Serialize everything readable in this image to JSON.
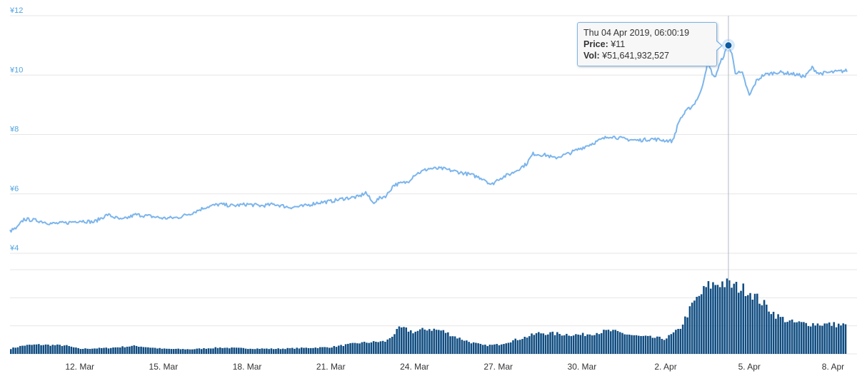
{
  "chart_data": {
    "type": "line",
    "price_axis": {
      "ticks": [
        "¥4",
        "¥6",
        "¥8",
        "¥10",
        "¥12"
      ],
      "ylim": [
        4,
        12
      ]
    },
    "x_ticks": [
      "12. Mar",
      "15. Mar",
      "18. Mar",
      "21. Mar",
      "24. Mar",
      "27. Mar",
      "30. Mar",
      "2. Apr",
      "5. Apr",
      "8. Apr"
    ],
    "x_range": [
      "2019-03-09T12:00",
      "2019-04-08T12:00"
    ],
    "series": [
      {
        "kind": "price_line",
        "color": "#7cb5ec",
        "points": [
          [
            "2019-03-09T12:00",
            4.75
          ],
          [
            "2019-03-09T18:00",
            4.85
          ],
          [
            "2019-03-10T00:00",
            5.15
          ],
          [
            "2019-03-10T12:00",
            5.1
          ],
          [
            "2019-03-11T00:00",
            5.0
          ],
          [
            "2019-03-11T12:00",
            5.02
          ],
          [
            "2019-03-12T00:00",
            5.1
          ],
          [
            "2019-03-12T12:00",
            5.05
          ],
          [
            "2019-03-13T00:00",
            5.3
          ],
          [
            "2019-03-13T12:00",
            5.12
          ],
          [
            "2019-03-14T00:00",
            5.3
          ],
          [
            "2019-03-14T12:00",
            5.25
          ],
          [
            "2019-03-15T00:00",
            5.18
          ],
          [
            "2019-03-15T12:00",
            5.2
          ],
          [
            "2019-03-16T00:00",
            5.35
          ],
          [
            "2019-03-16T12:00",
            5.55
          ],
          [
            "2019-03-17T00:00",
            5.65
          ],
          [
            "2019-03-17T12:00",
            5.6
          ],
          [
            "2019-03-18T00:00",
            5.65
          ],
          [
            "2019-03-18T12:00",
            5.6
          ],
          [
            "2019-03-19T00:00",
            5.65
          ],
          [
            "2019-03-19T12:00",
            5.55
          ],
          [
            "2019-03-20T00:00",
            5.58
          ],
          [
            "2019-03-20T12:00",
            5.7
          ],
          [
            "2019-03-21T00:00",
            5.75
          ],
          [
            "2019-03-21T12:00",
            5.85
          ],
          [
            "2019-03-22T00:00",
            5.9
          ],
          [
            "2019-03-22T06:00",
            6.05
          ],
          [
            "2019-03-22T12:00",
            5.7
          ],
          [
            "2019-03-22T18:00",
            5.85
          ],
          [
            "2019-03-23T00:00",
            5.95
          ],
          [
            "2019-03-23T06:00",
            6.3
          ],
          [
            "2019-03-23T18:00",
            6.4
          ],
          [
            "2019-03-24T00:00",
            6.65
          ],
          [
            "2019-03-24T12:00",
            6.85
          ],
          [
            "2019-03-25T00:00",
            6.85
          ],
          [
            "2019-03-25T12:00",
            6.75
          ],
          [
            "2019-03-26T00:00",
            6.65
          ],
          [
            "2019-03-26T12:00",
            6.5
          ],
          [
            "2019-03-26T18:00",
            6.3
          ],
          [
            "2019-03-27T00:00",
            6.5
          ],
          [
            "2019-03-27T12:00",
            6.7
          ],
          [
            "2019-03-28T00:00",
            7.0
          ],
          [
            "2019-03-28T06:00",
            7.35
          ],
          [
            "2019-03-28T18:00",
            7.3
          ],
          [
            "2019-03-29T00:00",
            7.2
          ],
          [
            "2019-03-29T12:00",
            7.35
          ],
          [
            "2019-03-30T00:00",
            7.55
          ],
          [
            "2019-03-30T12:00",
            7.75
          ],
          [
            "2019-03-31T00:00",
            7.95
          ],
          [
            "2019-03-31T12:00",
            7.85
          ],
          [
            "2019-04-01T00:00",
            7.8
          ],
          [
            "2019-04-01T12:00",
            7.85
          ],
          [
            "2019-04-02T00:00",
            7.8
          ],
          [
            "2019-04-02T06:00",
            7.78
          ],
          [
            "2019-04-02T12:00",
            8.5
          ],
          [
            "2019-04-02T18:00",
            8.8
          ],
          [
            "2019-04-03T00:00",
            9.0
          ],
          [
            "2019-04-03T06:00",
            9.4
          ],
          [
            "2019-04-03T12:00",
            10.4
          ],
          [
            "2019-04-03T18:00",
            9.9
          ],
          [
            "2019-04-04T00:00",
            10.5
          ],
          [
            "2019-04-04T06:00",
            11.0
          ],
          [
            "2019-04-04T09:00",
            10.7
          ],
          [
            "2019-04-04T12:00",
            10.1
          ],
          [
            "2019-04-04T18:00",
            10.05
          ],
          [
            "2019-04-05T00:00",
            9.3
          ],
          [
            "2019-04-05T06:00",
            9.8
          ],
          [
            "2019-04-05T12:00",
            10.0
          ],
          [
            "2019-04-06T00:00",
            10.1
          ],
          [
            "2019-04-06T12:00",
            10.05
          ],
          [
            "2019-04-07T00:00",
            9.95
          ],
          [
            "2019-04-07T06:00",
            10.25
          ],
          [
            "2019-04-07T12:00",
            10.05
          ],
          [
            "2019-04-08T00:00",
            10.1
          ],
          [
            "2019-04-08T12:00",
            10.15
          ]
        ]
      },
      {
        "kind": "volume_bars",
        "color": "#0f4c81",
        "points": [
          [
            "2019-03-09T12:00",
            0.12
          ],
          [
            "2019-03-10T00:00",
            0.2
          ],
          [
            "2019-03-10T12:00",
            0.22
          ],
          [
            "2019-03-11T12:00",
            0.2
          ],
          [
            "2019-03-12T00:00",
            0.12
          ],
          [
            "2019-03-13T00:00",
            0.14
          ],
          [
            "2019-03-14T00:00",
            0.19
          ],
          [
            "2019-03-15T00:00",
            0.12
          ],
          [
            "2019-03-16T00:00",
            0.11
          ],
          [
            "2019-03-17T00:00",
            0.15
          ],
          [
            "2019-03-18T00:00",
            0.13
          ],
          [
            "2019-03-19T00:00",
            0.12
          ],
          [
            "2019-03-20T00:00",
            0.14
          ],
          [
            "2019-03-21T00:00",
            0.16
          ],
          [
            "2019-03-22T00:00",
            0.26
          ],
          [
            "2019-03-23T00:00",
            0.3
          ],
          [
            "2019-03-23T12:00",
            0.62
          ],
          [
            "2019-03-24T00:00",
            0.52
          ],
          [
            "2019-03-24T12:00",
            0.6
          ],
          [
            "2019-03-25T00:00",
            0.55
          ],
          [
            "2019-03-25T12:00",
            0.4
          ],
          [
            "2019-03-26T00:00",
            0.28
          ],
          [
            "2019-03-26T12:00",
            0.2
          ],
          [
            "2019-03-27T00:00",
            0.22
          ],
          [
            "2019-03-28T00:00",
            0.4
          ],
          [
            "2019-03-28T12:00",
            0.5
          ],
          [
            "2019-03-29T00:00",
            0.48
          ],
          [
            "2019-03-30T00:00",
            0.45
          ],
          [
            "2019-03-31T00:00",
            0.55
          ],
          [
            "2019-04-01T00:00",
            0.42
          ],
          [
            "2019-04-02T00:00",
            0.36
          ],
          [
            "2019-04-02T12:00",
            0.58
          ],
          [
            "2019-04-03T00:00",
            1.2
          ],
          [
            "2019-04-03T12:00",
            1.6
          ],
          [
            "2019-04-04T00:00",
            1.7
          ],
          [
            "2019-04-04T12:00",
            1.6
          ],
          [
            "2019-04-05T00:00",
            1.5
          ],
          [
            "2019-04-05T12:00",
            1.2
          ],
          [
            "2019-04-06T00:00",
            0.9
          ],
          [
            "2019-04-06T12:00",
            0.75
          ],
          [
            "2019-04-07T00:00",
            0.72
          ],
          [
            "2019-04-08T00:00",
            0.7
          ],
          [
            "2019-04-08T12:00",
            0.68
          ]
        ]
      }
    ],
    "grid": true,
    "tooltip": {
      "date": "Thu 04 Apr 2019, 06:00:19",
      "price_label": "Price:",
      "price_value": "¥11",
      "vol_label": "Vol:",
      "vol_value": "¥51,641,932,527",
      "x": "2019-04-04T06:00",
      "price": 11.0
    }
  }
}
